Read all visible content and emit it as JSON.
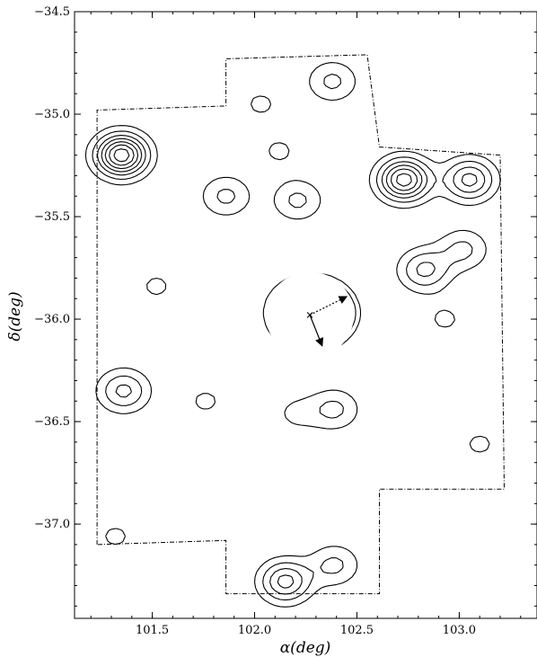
{
  "chart_data": {
    "type": "contour",
    "xlabel": "α(deg)",
    "ylabel": "δ(deg)",
    "xlim": [
      101.12,
      103.38
    ],
    "ylim": [
      -37.46,
      -34.5
    ],
    "x_inverted": false,
    "grid": false,
    "x_ticks": [
      {
        "value": 101.5,
        "label": "101.5"
      },
      {
        "value": 102.0,
        "label": "102.0"
      },
      {
        "value": 102.5,
        "label": "102.5"
      },
      {
        "value": 103.0,
        "label": "103.0"
      }
    ],
    "y_ticks": [
      {
        "value": -34.5,
        "label": "−34.5"
      },
      {
        "value": -35.0,
        "label": "−35.0"
      },
      {
        "value": -35.5,
        "label": "−35.5"
      },
      {
        "value": -36.0,
        "label": "−36.0"
      },
      {
        "value": -36.5,
        "label": "−36.5"
      },
      {
        "value": -37.0,
        "label": "−37.0"
      }
    ],
    "survey_footprint": [
      [
        101.23,
        -37.1
      ],
      [
        101.23,
        -34.98
      ],
      [
        101.86,
        -34.96
      ],
      [
        101.86,
        -34.73
      ],
      [
        102.55,
        -34.71
      ],
      [
        102.61,
        -35.16
      ],
      [
        103.2,
        -35.2
      ],
      [
        103.22,
        -36.83
      ],
      [
        102.61,
        -36.83
      ],
      [
        102.61,
        -37.34
      ],
      [
        101.86,
        -37.34
      ],
      [
        101.86,
        -37.08
      ],
      [
        101.23,
        -37.1
      ]
    ],
    "cluster_center": {
      "x": 102.27,
      "y": -35.98
    },
    "vectors": [
      {
        "from": [
          102.27,
          -35.98
        ],
        "to": [
          102.45,
          -35.89
        ],
        "style": "dotted"
      },
      {
        "from": [
          102.27,
          -35.98
        ],
        "to": [
          102.33,
          -36.13
        ],
        "style": "solid"
      }
    ],
    "peaks": [
      {
        "x": 101.35,
        "y": -35.2,
        "levels": [
          0.1,
          0.09,
          0.08,
          0.07,
          0.06,
          0.05,
          0.04
        ]
      },
      {
        "x": 102.28,
        "y": -35.97,
        "levels": [
          0.1,
          0.095,
          0.09,
          0.085,
          0.08,
          0.075,
          0.07,
          0.065,
          0.06,
          0.055,
          0.05,
          0.045,
          0.04,
          0.035,
          0.03,
          0.025,
          0.02
        ]
      },
      {
        "x": 102.73,
        "y": -35.32,
        "levels": [
          0.1,
          0.09,
          0.08,
          0.07,
          0.06,
          0.05
        ]
      },
      {
        "x": 103.05,
        "y": -35.32,
        "levels": [
          0.1,
          0.09,
          0.08,
          0.07
        ]
      },
      {
        "x": 102.83,
        "y": -35.76,
        "levels": [
          0.1,
          0.09,
          0.08
        ]
      },
      {
        "x": 103.02,
        "y": -35.66,
        "levels": [
          0.1,
          0.09
        ]
      },
      {
        "x": 102.15,
        "y": -37.28,
        "levels": [
          0.1,
          0.09,
          0.08,
          0.07
        ]
      },
      {
        "x": 102.39,
        "y": -37.2,
        "levels": [
          0.1,
          0.09
        ]
      },
      {
        "x": 101.36,
        "y": -36.35,
        "levels": [
          0.1,
          0.09,
          0.08
        ]
      },
      {
        "x": 101.86,
        "y": -35.4,
        "levels": [
          0.1,
          0.09
        ]
      },
      {
        "x": 102.21,
        "y": -35.42,
        "levels": [
          0.1,
          0.09
        ]
      },
      {
        "x": 102.38,
        "y": -34.84,
        "levels": [
          0.1,
          0.09
        ]
      },
      {
        "x": 102.03,
        "y": -34.95,
        "levels": [
          0.1
        ]
      },
      {
        "x": 102.12,
        "y": -35.18,
        "levels": [
          0.1
        ]
      },
      {
        "x": 101.52,
        "y": -35.84,
        "levels": [
          0.1
        ]
      },
      {
        "x": 101.76,
        "y": -36.4,
        "levels": [
          0.1
        ]
      },
      {
        "x": 102.39,
        "y": -36.44,
        "levels": [
          0.1,
          0.09
        ]
      },
      {
        "x": 102.2,
        "y": -36.46,
        "levels": [
          0.1
        ]
      },
      {
        "x": 103.1,
        "y": -36.61,
        "levels": [
          0.1
        ]
      },
      {
        "x": 101.32,
        "y": -37.06,
        "levels": [
          0.1
        ]
      },
      {
        "x": 102.93,
        "y": -36.0,
        "levels": [
          0.1
        ]
      }
    ]
  }
}
